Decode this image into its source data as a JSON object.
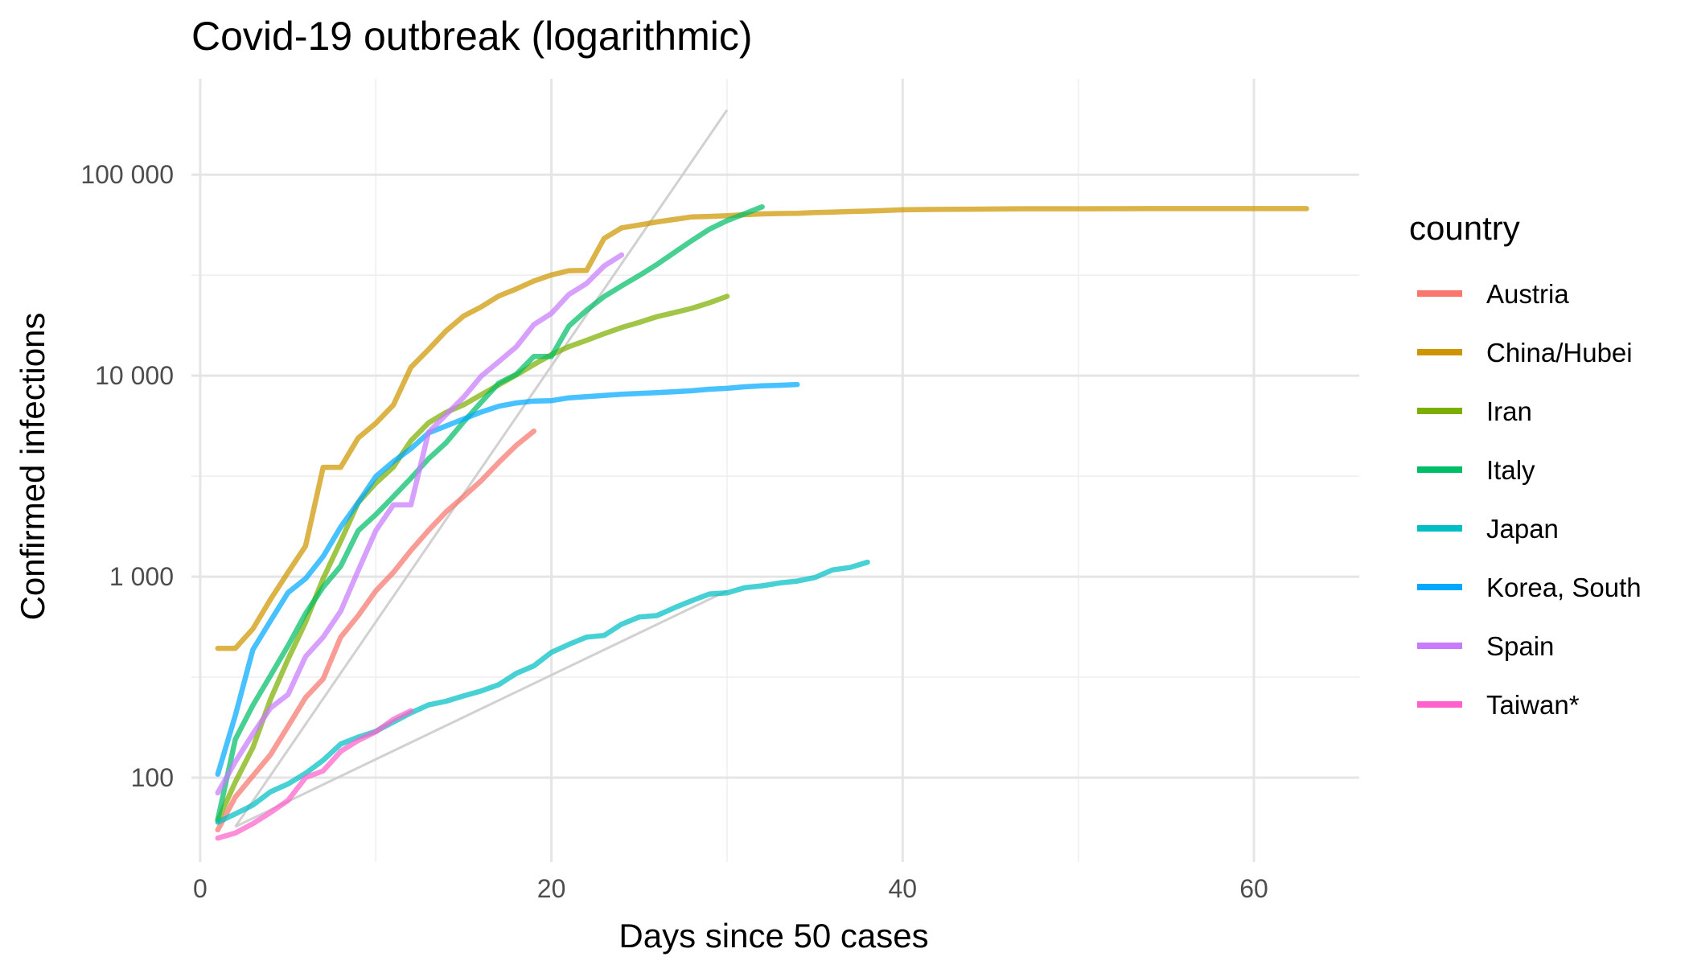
{
  "chart_data": {
    "type": "line",
    "title": "Covid-19 outbreak (logarithmic)",
    "xlabel": "Days since 50 cases",
    "ylabel": "Confirmed infections",
    "xlim": [
      -0.5,
      66
    ],
    "ylim": [
      38,
      300000
    ],
    "y_scale": "log10",
    "grid": true,
    "legend_title": "country",
    "legend_position": "right",
    "x_ticks": [
      {
        "value": 0,
        "label": "0"
      },
      {
        "value": 20,
        "label": "20"
      },
      {
        "value": 40,
        "label": "40"
      },
      {
        "value": 60,
        "label": "60"
      }
    ],
    "y_ticks": [
      {
        "value": 100,
        "label": "100"
      },
      {
        "value": 1000,
        "label": "1 000"
      },
      {
        "value": 10000,
        "label": "10 000"
      },
      {
        "value": 100000,
        "label": "100 000"
      }
    ],
    "series": [
      {
        "name": "Austria",
        "color": "#F8766D",
        "points": [
          [
            1,
            55
          ],
          [
            2,
            80
          ],
          [
            3,
            102
          ],
          [
            4,
            130
          ],
          [
            5,
            180
          ],
          [
            6,
            250
          ],
          [
            7,
            310
          ],
          [
            8,
            500
          ],
          [
            9,
            640
          ],
          [
            10,
            850
          ],
          [
            11,
            1050
          ],
          [
            12,
            1350
          ],
          [
            13,
            1700
          ],
          [
            14,
            2100
          ],
          [
            15,
            2500
          ],
          [
            16,
            3000
          ],
          [
            17,
            3700
          ],
          [
            18,
            4500
          ],
          [
            19,
            5300
          ]
        ]
      },
      {
        "name": "China/Hubei",
        "color": "#CD9600",
        "points": [
          [
            1,
            440
          ],
          [
            2,
            440
          ],
          [
            3,
            550
          ],
          [
            4,
            770
          ],
          [
            5,
            1050
          ],
          [
            6,
            1420
          ],
          [
            7,
            3500
          ],
          [
            8,
            3500
          ],
          [
            9,
            4900
          ],
          [
            10,
            5800
          ],
          [
            11,
            7150
          ],
          [
            12,
            11000
          ],
          [
            13,
            13500
          ],
          [
            14,
            16700
          ],
          [
            15,
            19800
          ],
          [
            16,
            22000
          ],
          [
            17,
            24900
          ],
          [
            18,
            27000
          ],
          [
            19,
            29600
          ],
          [
            20,
            31700
          ],
          [
            21,
            33300
          ],
          [
            22,
            33400
          ],
          [
            23,
            48200
          ],
          [
            24,
            54400
          ],
          [
            25,
            56200
          ],
          [
            26,
            58200
          ],
          [
            27,
            59900
          ],
          [
            28,
            61700
          ],
          [
            29,
            62000
          ],
          [
            30,
            62500
          ],
          [
            31,
            63200
          ],
          [
            32,
            63800
          ],
          [
            33,
            64100
          ],
          [
            34,
            64300
          ],
          [
            35,
            64800
          ],
          [
            36,
            65200
          ],
          [
            37,
            65600
          ],
          [
            38,
            65900
          ],
          [
            39,
            66300
          ],
          [
            40,
            66900
          ],
          [
            42,
            67200
          ],
          [
            44,
            67400
          ],
          [
            46,
            67600
          ],
          [
            48,
            67700
          ],
          [
            50,
            67700
          ],
          [
            52,
            67760
          ],
          [
            54,
            67780
          ],
          [
            56,
            67790
          ],
          [
            58,
            67790
          ],
          [
            60,
            67795
          ],
          [
            63,
            67800
          ]
        ]
      },
      {
        "name": "Iran",
        "color": "#7CAE00",
        "points": [
          [
            1,
            61
          ],
          [
            2,
            95
          ],
          [
            3,
            141
          ],
          [
            4,
            245
          ],
          [
            5,
            388
          ],
          [
            6,
            593
          ],
          [
            7,
            978
          ],
          [
            8,
            1501
          ],
          [
            9,
            2336
          ],
          [
            10,
            2922
          ],
          [
            11,
            3513
          ],
          [
            12,
            4747
          ],
          [
            13,
            5823
          ],
          [
            14,
            6566
          ],
          [
            15,
            7161
          ],
          [
            16,
            8042
          ],
          [
            17,
            9000
          ],
          [
            18,
            10075
          ],
          [
            19,
            11364
          ],
          [
            20,
            12729
          ],
          [
            21,
            13938
          ],
          [
            22,
            14991
          ],
          [
            23,
            16169
          ],
          [
            24,
            17361
          ],
          [
            25,
            18407
          ],
          [
            26,
            19644
          ],
          [
            27,
            20610
          ],
          [
            28,
            21638
          ],
          [
            29,
            23049
          ],
          [
            30,
            24811
          ]
        ]
      },
      {
        "name": "Italy",
        "color": "#00BE67",
        "points": [
          [
            1,
            62
          ],
          [
            2,
            155
          ],
          [
            3,
            229
          ],
          [
            4,
            322
          ],
          [
            5,
            453
          ],
          [
            6,
            655
          ],
          [
            7,
            888
          ],
          [
            8,
            1128
          ],
          [
            9,
            1694
          ],
          [
            10,
            2036
          ],
          [
            11,
            2502
          ],
          [
            12,
            3089
          ],
          [
            13,
            3858
          ],
          [
            14,
            4636
          ],
          [
            15,
            5883
          ],
          [
            16,
            7375
          ],
          [
            17,
            9172
          ],
          [
            18,
            10149
          ],
          [
            19,
            12462
          ],
          [
            20,
            12462
          ],
          [
            21,
            17660
          ],
          [
            22,
            21157
          ],
          [
            23,
            24747
          ],
          [
            24,
            27980
          ],
          [
            25,
            31506
          ],
          [
            26,
            35713
          ],
          [
            27,
            41035
          ],
          [
            28,
            47021
          ],
          [
            29,
            53578
          ],
          [
            30,
            59138
          ],
          [
            31,
            63927
          ],
          [
            32,
            69176
          ]
        ]
      },
      {
        "name": "Japan",
        "color": "#00BFC4",
        "points": [
          [
            1,
            60
          ],
          [
            2,
            66
          ],
          [
            3,
            73
          ],
          [
            4,
            85
          ],
          [
            5,
            93
          ],
          [
            6,
            105
          ],
          [
            7,
            122
          ],
          [
            8,
            147
          ],
          [
            9,
            159
          ],
          [
            10,
            170
          ],
          [
            11,
            189
          ],
          [
            12,
            210
          ],
          [
            13,
            230
          ],
          [
            14,
            240
          ],
          [
            15,
            255
          ],
          [
            16,
            270
          ],
          [
            17,
            290
          ],
          [
            18,
            330
          ],
          [
            19,
            360
          ],
          [
            20,
            420
          ],
          [
            21,
            460
          ],
          [
            22,
            500
          ],
          [
            23,
            510
          ],
          [
            24,
            580
          ],
          [
            25,
            630
          ],
          [
            26,
            640
          ],
          [
            27,
            700
          ],
          [
            28,
            760
          ],
          [
            29,
            820
          ],
          [
            30,
            830
          ],
          [
            31,
            880
          ],
          [
            32,
            900
          ],
          [
            33,
            930
          ],
          [
            34,
            950
          ],
          [
            35,
            990
          ],
          [
            36,
            1080
          ],
          [
            37,
            1110
          ],
          [
            38,
            1180
          ]
        ]
      },
      {
        "name": "Korea, South",
        "color": "#00A9FF",
        "points": [
          [
            1,
            104
          ],
          [
            2,
            204
          ],
          [
            3,
            433
          ],
          [
            4,
            602
          ],
          [
            5,
            833
          ],
          [
            6,
            977
          ],
          [
            7,
            1261
          ],
          [
            8,
            1766
          ],
          [
            9,
            2337
          ],
          [
            10,
            3150
          ],
          [
            11,
            3736
          ],
          [
            12,
            4335
          ],
          [
            13,
            5186
          ],
          [
            14,
            5621
          ],
          [
            15,
            6088
          ],
          [
            16,
            6593
          ],
          [
            17,
            7041
          ],
          [
            18,
            7314
          ],
          [
            19,
            7478
          ],
          [
            20,
            7513
          ],
          [
            21,
            7755
          ],
          [
            22,
            7869
          ],
          [
            23,
            7979
          ],
          [
            24,
            8086
          ],
          [
            25,
            8162
          ],
          [
            26,
            8236
          ],
          [
            27,
            8320
          ],
          [
            28,
            8413
          ],
          [
            29,
            8565
          ],
          [
            30,
            8652
          ],
          [
            31,
            8799
          ],
          [
            32,
            8897
          ],
          [
            33,
            8961
          ],
          [
            34,
            9037
          ]
        ]
      },
      {
        "name": "Spain",
        "color": "#C77CFF",
        "points": [
          [
            1,
            84
          ],
          [
            2,
            120
          ],
          [
            3,
            165
          ],
          [
            4,
            222
          ],
          [
            5,
            259
          ],
          [
            6,
            400
          ],
          [
            7,
            500
          ],
          [
            8,
            673
          ],
          [
            9,
            1073
          ],
          [
            10,
            1695
          ],
          [
            11,
            2277
          ],
          [
            12,
            2277
          ],
          [
            13,
            5232
          ],
          [
            14,
            6391
          ],
          [
            15,
            7798
          ],
          [
            16,
            9942
          ],
          [
            17,
            11748
          ],
          [
            18,
            13910
          ],
          [
            19,
            17963
          ],
          [
            20,
            20410
          ],
          [
            21,
            25374
          ],
          [
            22,
            28768
          ],
          [
            23,
            35136
          ],
          [
            24,
            39885
          ]
        ]
      },
      {
        "name": "Taiwan*",
        "color": "#FF61CC",
        "points": [
          [
            1,
            50
          ],
          [
            2,
            53
          ],
          [
            3,
            59
          ],
          [
            4,
            67
          ],
          [
            5,
            77
          ],
          [
            6,
            100
          ],
          [
            7,
            108
          ],
          [
            8,
            135
          ],
          [
            9,
            153
          ],
          [
            10,
            169
          ],
          [
            11,
            195
          ],
          [
            12,
            215
          ]
        ]
      }
    ],
    "reference_lines": [
      {
        "points": [
          [
            2,
            57
          ],
          [
            30,
            210000
          ]
        ]
      },
      {
        "points": [
          [
            2,
            57
          ],
          [
            30,
            850
          ]
        ]
      }
    ]
  }
}
